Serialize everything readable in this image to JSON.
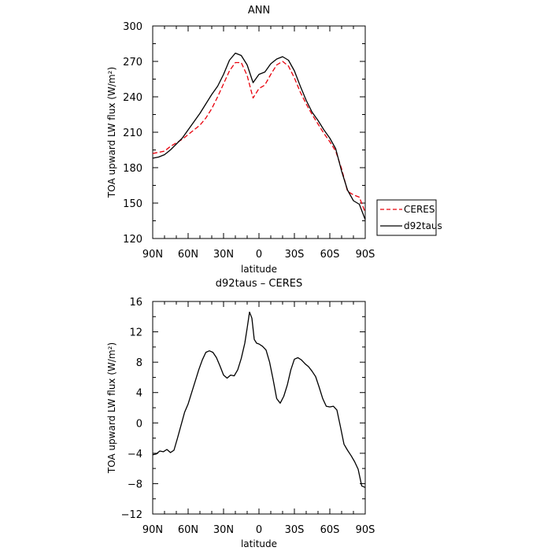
{
  "chart_data": [
    {
      "type": "line",
      "title": "ANN",
      "xlabel": "latitude",
      "ylabel": "TOA upward LW flux (W/m²)",
      "x_ticks": [
        90,
        60,
        30,
        0,
        -30,
        -60,
        -90
      ],
      "x_tick_labels": [
        "90N",
        "60N",
        "30N",
        "0",
        "30S",
        "60S",
        "90S"
      ],
      "xlim": [
        90,
        -90
      ],
      "ylim": [
        120,
        300
      ],
      "y_ticks": [
        120,
        150,
        180,
        210,
        240,
        270,
        300
      ],
      "y_tick_labels": [
        "120",
        "150",
        "180",
        "210",
        "240",
        "270",
        "300"
      ],
      "legend": {
        "placement": "right",
        "entries": [
          "CERES",
          "d92taus"
        ]
      },
      "series": [
        {
          "name": "CERES",
          "color": "#e8000b",
          "dash": "dashed",
          "x": [
            90,
            85,
            80,
            75,
            70,
            65,
            60,
            55,
            50,
            45,
            40,
            35,
            30,
            25,
            20,
            15,
            10,
            5,
            0,
            -5,
            -10,
            -15,
            -20,
            -25,
            -30,
            -35,
            -40,
            -45,
            -50,
            -55,
            -60,
            -65,
            -70,
            -75,
            -80,
            -85,
            -90
          ],
          "values": [
            192,
            193,
            194,
            198,
            201,
            204,
            208,
            212,
            216,
            222,
            230,
            240,
            251,
            262,
            269,
            269,
            258,
            239,
            247,
            250,
            259,
            267,
            270,
            266,
            256,
            244,
            234,
            225,
            217,
            209,
            202,
            194,
            179,
            160,
            157,
            155,
            142
          ]
        },
        {
          "name": "d92taus",
          "color": "#000000",
          "dash": "solid",
          "x": [
            90,
            85,
            80,
            75,
            70,
            65,
            60,
            55,
            50,
            45,
            40,
            35,
            30,
            25,
            20,
            15,
            10,
            5,
            0,
            -5,
            -10,
            -15,
            -20,
            -25,
            -30,
            -35,
            -40,
            -45,
            -50,
            -55,
            -60,
            -65,
            -70,
            -75,
            -80,
            -85,
            -90
          ],
          "values": [
            188,
            189,
            191,
            195,
            200,
            205,
            212,
            219,
            226,
            234,
            242,
            249,
            259,
            271,
            277,
            275,
            267,
            252,
            259,
            261,
            268,
            272,
            274,
            271,
            262,
            249,
            237,
            227,
            220,
            212,
            205,
            196,
            177,
            161,
            152,
            149,
            136
          ]
        }
      ]
    },
    {
      "type": "line",
      "title": "d92taus – CERES",
      "xlabel": "latitude",
      "ylabel": "TOA upward LW flux (W/m²)",
      "x_ticks": [
        90,
        60,
        30,
        0,
        -30,
        -60,
        -90
      ],
      "x_tick_labels": [
        "90N",
        "60N",
        "30N",
        "0",
        "30S",
        "60S",
        "90S"
      ],
      "xlim": [
        90,
        -90
      ],
      "ylim": [
        -12,
        16
      ],
      "y_ticks": [
        -12,
        -8,
        -4,
        0,
        4,
        8,
        12,
        16
      ],
      "y_tick_labels": [
        "−12",
        "−8",
        "−4",
        "0",
        "4",
        "8",
        "12",
        "16"
      ],
      "series": [
        {
          "color": "#000000",
          "dash": "solid",
          "x": [
            90,
            87,
            84,
            81,
            78,
            75,
            72,
            69,
            66,
            63,
            60,
            57,
            54,
            51,
            48,
            45,
            42,
            39,
            36,
            33,
            30,
            27,
            24,
            21,
            18,
            15,
            12,
            10,
            8,
            6,
            4,
            2,
            0,
            -3,
            -6,
            -9,
            -12,
            -15,
            -18,
            -21,
            -24,
            -27,
            -30,
            -33,
            -36,
            -39,
            -42,
            -45,
            -48,
            -51,
            -54,
            -57,
            -60,
            -63,
            -66,
            -69,
            -72,
            -75,
            -78,
            -81,
            -84,
            -87,
            -90
          ],
          "values": [
            -4.2,
            -4.1,
            -3.7,
            -3.8,
            -3.5,
            -3.9,
            -3.6,
            -2.0,
            -0.3,
            1.4,
            2.5,
            4.0,
            5.5,
            7.0,
            8.3,
            9.3,
            9.5,
            9.3,
            8.6,
            7.5,
            6.3,
            5.9,
            6.3,
            6.2,
            7.0,
            8.5,
            10.5,
            12.5,
            14.6,
            13.8,
            11.0,
            10.5,
            10.4,
            10.1,
            9.6,
            8.0,
            5.7,
            3.2,
            2.6,
            3.5,
            5.0,
            7.0,
            8.4,
            8.6,
            8.3,
            7.8,
            7.4,
            6.8,
            6.1,
            4.7,
            3.2,
            2.2,
            2.1,
            2.2,
            1.7,
            -0.5,
            -2.8,
            -3.6,
            -4.3,
            -5.1,
            -6.1,
            -8.3,
            -8.5
          ]
        }
      ]
    }
  ]
}
